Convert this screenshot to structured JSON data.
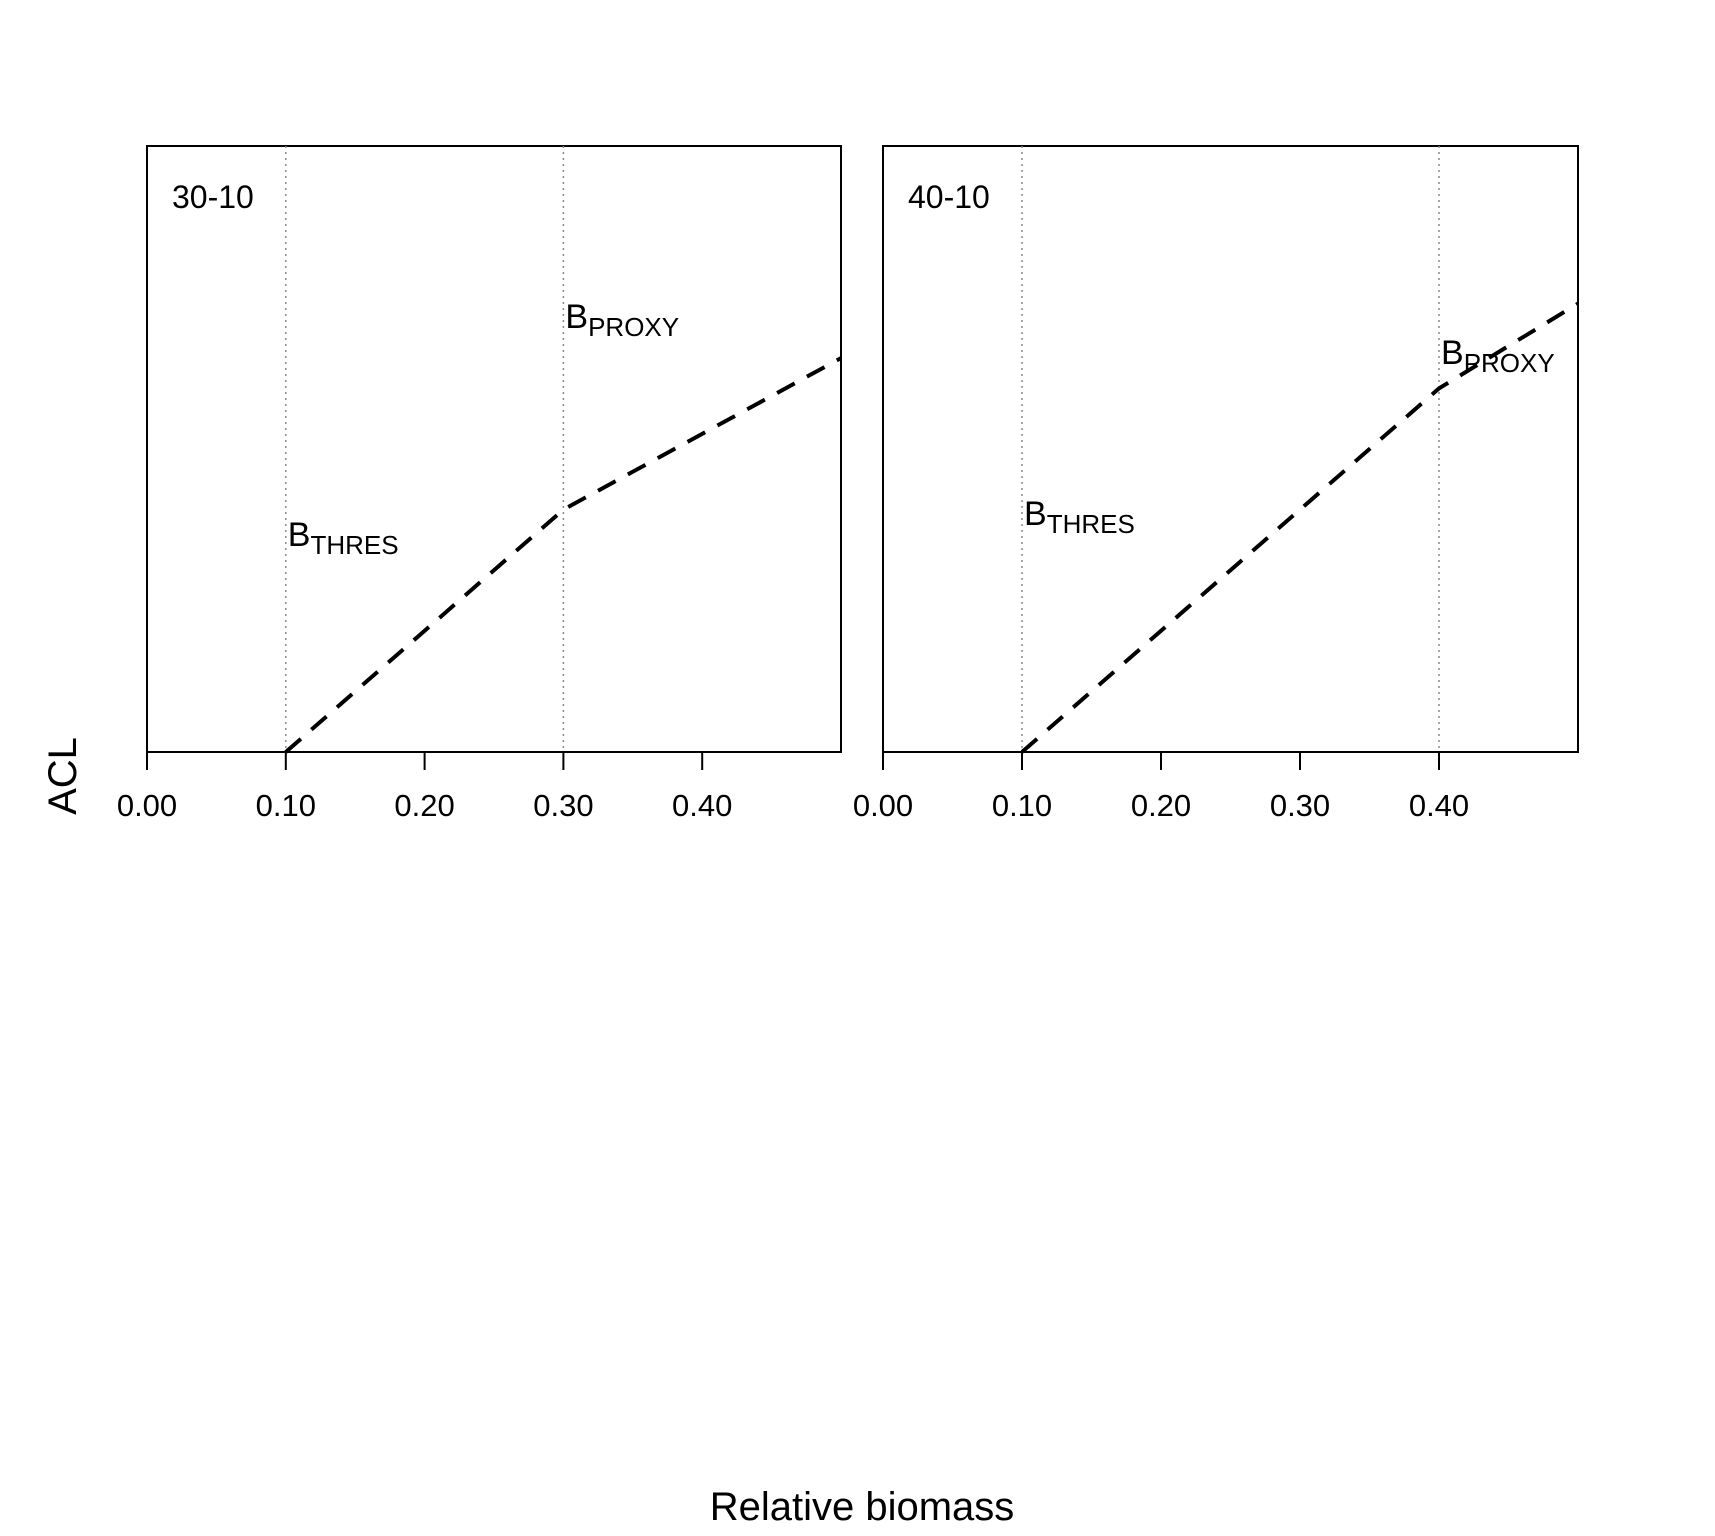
{
  "xlabel": "Relative biomass",
  "ylabel": "ACL",
  "chart_data": [
    {
      "type": "line",
      "panel_label": "30-10",
      "x": [
        0.1,
        0.3,
        0.5
      ],
      "y": [
        0.0,
        0.4,
        0.65
      ],
      "xlim": [
        0,
        0.5
      ],
      "xticks": [
        "0.00",
        "0.10",
        "0.20",
        "0.30",
        "0.40"
      ],
      "xtick_values": [
        0.0,
        0.1,
        0.2,
        0.3,
        0.4
      ],
      "line_style": "dashed",
      "reference_lines": [
        {
          "x": 0.1,
          "label_main": "B",
          "label_sub": "THRES",
          "label_y": 0.34
        },
        {
          "x": 0.3,
          "label_main": "B",
          "label_sub": "PROXY",
          "label_y": 0.7
        }
      ]
    },
    {
      "type": "line",
      "panel_label": "40-10",
      "x": [
        0.1,
        0.4,
        0.5
      ],
      "y": [
        0.0,
        0.6,
        0.74
      ],
      "xlim": [
        0,
        0.5
      ],
      "xticks": [
        "0.00",
        "0.10",
        "0.20",
        "0.30",
        "0.40"
      ],
      "xtick_values": [
        0.0,
        0.1,
        0.2,
        0.3,
        0.4
      ],
      "line_style": "dashed",
      "reference_lines": [
        {
          "x": 0.1,
          "label_main": "B",
          "label_sub": "THRES",
          "label_y": 0.375
        },
        {
          "x": 0.4,
          "label_main": "B",
          "label_sub": "PROXY",
          "label_y": 0.64
        }
      ]
    }
  ]
}
